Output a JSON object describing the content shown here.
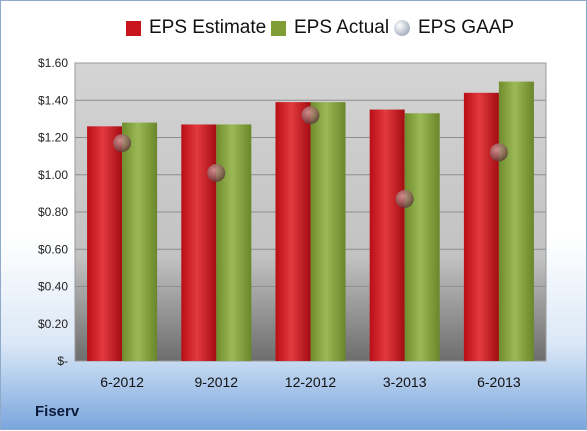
{
  "chart_data": {
    "type": "bar",
    "categories": [
      "6-2012",
      "9-2012",
      "12-2012",
      "3-2013",
      "6-2013"
    ],
    "series": [
      {
        "name": "EPS Estimate",
        "kind": "bar",
        "color": "#c8141c",
        "values": [
          1.26,
          1.27,
          1.39,
          1.35,
          1.44
        ]
      },
      {
        "name": "EPS Actual",
        "kind": "bar",
        "color": "#7f9e35",
        "values": [
          1.28,
          1.27,
          1.39,
          1.33,
          1.5
        ]
      },
      {
        "name": "EPS GAAP",
        "kind": "marker",
        "color": "#9ea7b5",
        "values": [
          1.17,
          1.01,
          1.32,
          0.87,
          1.12
        ]
      }
    ],
    "ylim": [
      0,
      1.6
    ],
    "yticks": [
      "$-",
      "$0.20",
      "$0.40",
      "$0.60",
      "$0.80",
      "$1.00",
      "$1.20",
      "$1.40",
      "$1.60"
    ],
    "grid": true,
    "legend": "top"
  },
  "footer": {
    "company": "Fiserv"
  }
}
